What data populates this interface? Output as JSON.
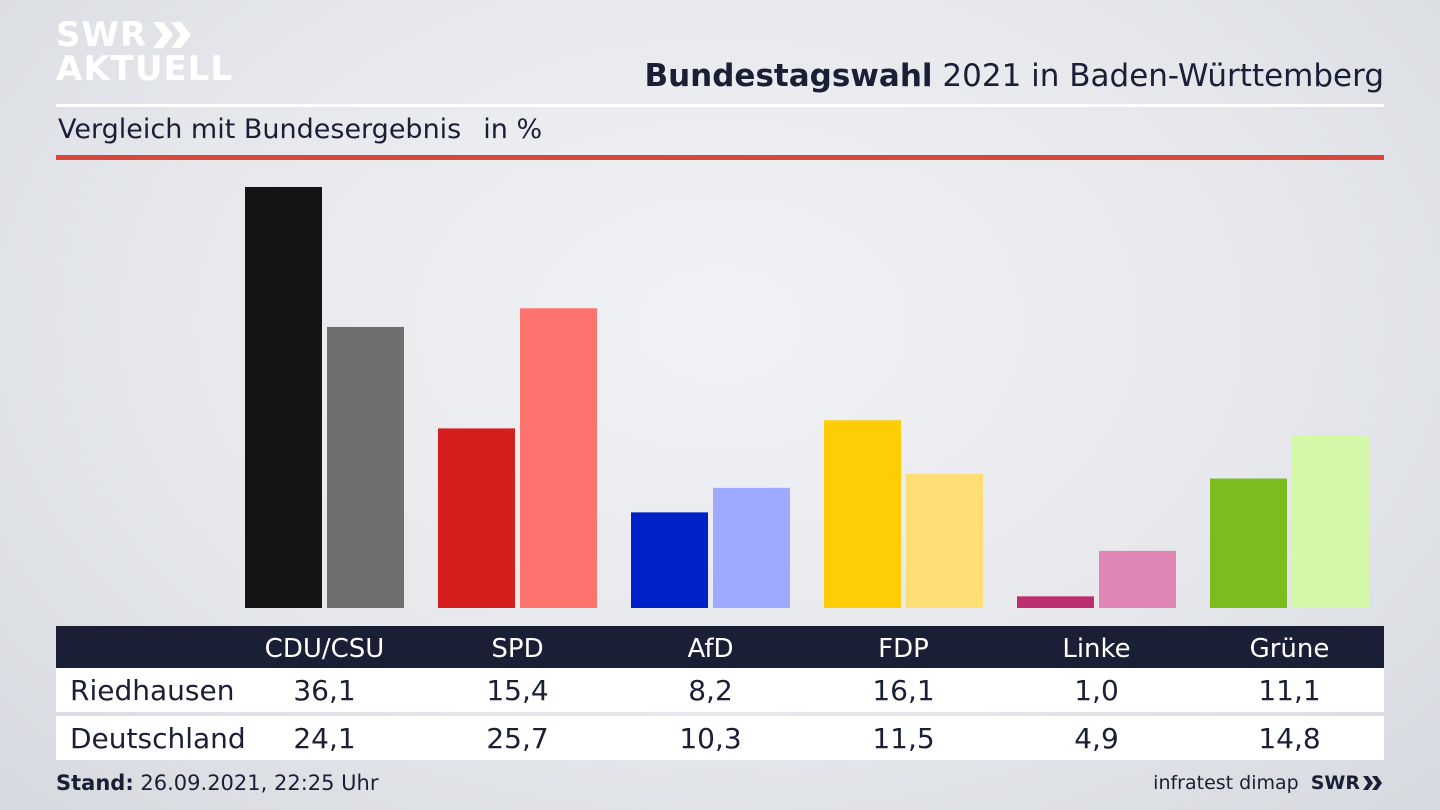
{
  "header": {
    "logo_line1": "SWR",
    "logo_line2": "AKTUELL",
    "title_bold": "Bundestagswahl",
    "title_rest": " 2021 in Baden-Württemberg",
    "subtitle": "Vergleich mit Bundesergebnis",
    "unit": "in %"
  },
  "footer": {
    "stand_label": "Stand:",
    "stand_value": " 26.09.2021, 22:25 Uhr",
    "source": "infratest dimap",
    "brand": "SWR"
  },
  "chart_data": {
    "type": "bar",
    "categories": [
      "CDU/CSU",
      "SPD",
      "AfD",
      "FDP",
      "Linke",
      "Grüne"
    ],
    "series": [
      {
        "name": "Riedhausen",
        "values": [
          36.1,
          15.4,
          8.2,
          16.1,
          1.0,
          11.1
        ],
        "colors": [
          "#141414",
          "#d61e1e",
          "#0020c8",
          "#ffcd05",
          "#be2f72",
          "#7bbd1f"
        ]
      },
      {
        "name": "Deutschland",
        "values": [
          24.1,
          25.7,
          10.3,
          11.5,
          4.9,
          14.8
        ],
        "colors": [
          "#706f6d",
          "#ff736e",
          "#9eaaff",
          "#ffdf75",
          "#e086b6",
          "#d4f7a8"
        ]
      }
    ],
    "value_labels": {
      "Riedhausen": [
        "36,1",
        "15,4",
        "8,2",
        "16,1",
        "1,0",
        "11,1"
      ],
      "Deutschland": [
        "24,1",
        "25,7",
        "10,3",
        "11,5",
        "4,9",
        "14,8"
      ]
    },
    "ylim": [
      0,
      36.1
    ],
    "grid": false,
    "legend": "table below chart"
  }
}
